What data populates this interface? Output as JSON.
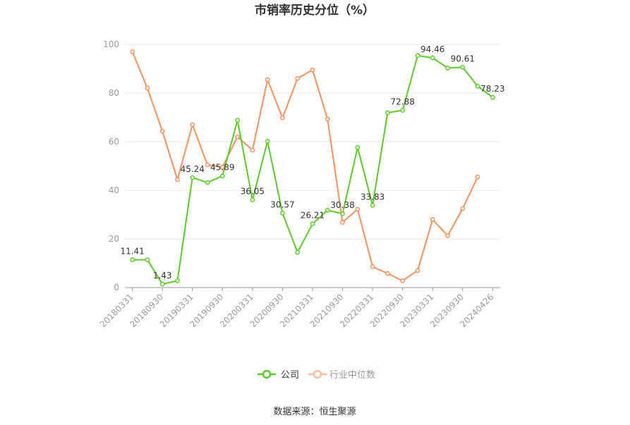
{
  "chart_data": {
    "type": "line",
    "title": "市销率历史分位（%）",
    "ylim": [
      0,
      100
    ],
    "yticks": [
      0,
      20,
      40,
      60,
      80,
      100
    ],
    "grid": true,
    "legend_position": "bottom",
    "x_tick_labels": [
      "20180331",
      "20180930",
      "20190331",
      "20190930",
      "20200331",
      "20200930",
      "20210331",
      "20210930",
      "20220331",
      "20220930",
      "20230331",
      "20230930",
      "20240426"
    ],
    "x": [
      "20180331",
      "20180630",
      "20180930",
      "20181231",
      "20190331",
      "20190630",
      "20190930",
      "20191231",
      "20200331",
      "20200630",
      "20200930",
      "20201231",
      "20210331",
      "20210630",
      "20210930",
      "20211231",
      "20220331",
      "20220630",
      "20220930",
      "20221231",
      "20230331",
      "20230630",
      "20230930",
      "20231231",
      "20240426"
    ],
    "series": [
      {
        "name": "公司",
        "color": "#5ec92c",
        "values": [
          11.41,
          11.41,
          1.43,
          2.8,
          45.24,
          43.2,
          45.89,
          68.8,
          36.05,
          60.2,
          30.57,
          14.5,
          26.21,
          31.8,
          30.38,
          57.6,
          33.83,
          71.9,
          72.88,
          95.4,
          94.46,
          90.3,
          90.61,
          82.8,
          78.23
        ],
        "data_labels": [
          {
            "index": 0,
            "text": "11.41"
          },
          {
            "index": 2,
            "text": "1.43"
          },
          {
            "index": 4,
            "text": "45.24"
          },
          {
            "index": 6,
            "text": "45.89"
          },
          {
            "index": 8,
            "text": "36.05"
          },
          {
            "index": 10,
            "text": "30.57"
          },
          {
            "index": 12,
            "text": "26.21"
          },
          {
            "index": 14,
            "text": "30.38"
          },
          {
            "index": 16,
            "text": "33.83"
          },
          {
            "index": 18,
            "text": "72.88"
          },
          {
            "index": 20,
            "text": "94.46"
          },
          {
            "index": 22,
            "text": "90.61"
          },
          {
            "index": 24,
            "text": "78.23"
          }
        ]
      },
      {
        "name": "行业中位数",
        "color": "#f4915e",
        "values": [
          97.0,
          82.0,
          64.3,
          44.4,
          67.0,
          50.5,
          49.5,
          62.0,
          56.5,
          85.5,
          69.8,
          86.0,
          89.5,
          69.3,
          26.8,
          32.2,
          8.6,
          5.8,
          2.8,
          7.0,
          28.0,
          21.3,
          32.5,
          45.5,
          null
        ]
      }
    ]
  },
  "footer": {
    "source": "数据来源：恒生聚源"
  }
}
